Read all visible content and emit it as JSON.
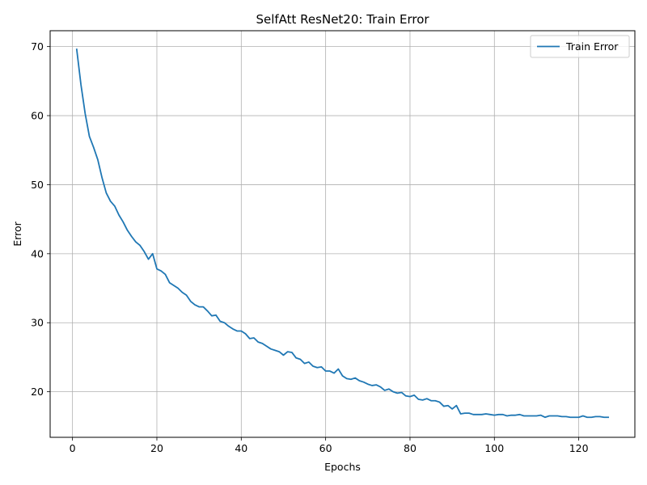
{
  "chart_data": {
    "type": "line",
    "title": "SelfAtt ResNet20: Train Error",
    "xlabel": "Epochs",
    "ylabel": "Error",
    "xlim": [
      -5.3,
      133.3
    ],
    "ylim": [
      13.4,
      72.3
    ],
    "xticks": [
      0,
      20,
      40,
      60,
      80,
      100,
      120
    ],
    "yticks": [
      20,
      30,
      40,
      50,
      60,
      70
    ],
    "grid": true,
    "legend_position": "top-right",
    "series": [
      {
        "name": "Train Error",
        "color": "#1f77b4",
        "x": [
          1,
          2,
          3,
          4,
          5,
          6,
          7,
          8,
          9,
          10,
          11,
          12,
          13,
          14,
          15,
          16,
          17,
          18,
          19,
          20,
          21,
          22,
          23,
          24,
          25,
          26,
          27,
          28,
          29,
          30,
          31,
          32,
          33,
          34,
          35,
          36,
          37,
          38,
          39,
          40,
          41,
          42,
          43,
          44,
          45,
          46,
          47,
          48,
          49,
          50,
          51,
          52,
          53,
          54,
          55,
          56,
          57,
          58,
          59,
          60,
          61,
          62,
          63,
          64,
          65,
          66,
          67,
          68,
          69,
          70,
          71,
          72,
          73,
          74,
          75,
          76,
          77,
          78,
          79,
          80,
          81,
          82,
          83,
          84,
          85,
          86,
          87,
          88,
          89,
          90,
          91,
          92,
          93,
          94,
          95,
          96,
          97,
          98,
          99,
          100,
          101,
          102,
          103,
          104,
          105,
          106,
          107,
          108,
          109,
          110,
          111,
          112,
          113,
          114,
          115,
          116,
          117,
          118,
          119,
          120,
          121,
          122,
          123,
          124,
          125,
          126,
          127
        ],
        "y": [
          69.6,
          64.5,
          60.3,
          57.0,
          55.4,
          53.6,
          51.0,
          48.8,
          47.6,
          46.9,
          45.6,
          44.6,
          43.4,
          42.5,
          41.7,
          41.2,
          40.3,
          39.2,
          40.0,
          37.8,
          37.5,
          37.0,
          35.8,
          35.4,
          35.0,
          34.4,
          34.0,
          33.1,
          32.6,
          32.3,
          32.3,
          31.7,
          31.0,
          31.1,
          30.2,
          30.0,
          29.5,
          29.1,
          28.8,
          28.8,
          28.4,
          27.7,
          27.8,
          27.2,
          27.0,
          26.6,
          26.2,
          26.0,
          25.8,
          25.3,
          25.8,
          25.7,
          24.9,
          24.7,
          24.1,
          24.3,
          23.7,
          23.5,
          23.6,
          23.0,
          23.0,
          22.7,
          23.3,
          22.3,
          21.9,
          21.8,
          22.0,
          21.6,
          21.4,
          21.1,
          20.9,
          21.0,
          20.7,
          20.2,
          20.4,
          20.0,
          19.8,
          19.9,
          19.4,
          19.3,
          19.5,
          18.9,
          18.8,
          19.0,
          18.7,
          18.7,
          18.5,
          17.9,
          18.0,
          17.5,
          18.0,
          16.8,
          16.9,
          16.9,
          16.7,
          16.7,
          16.7,
          16.8,
          16.7,
          16.6,
          16.7,
          16.7,
          16.5,
          16.6,
          16.6,
          16.7,
          16.5,
          16.5,
          16.5,
          16.5,
          16.6,
          16.3,
          16.5,
          16.5,
          16.5,
          16.4,
          16.4,
          16.3,
          16.3,
          16.3,
          16.5,
          16.3,
          16.3,
          16.4,
          16.4,
          16.3,
          16.3
        ]
      }
    ]
  }
}
